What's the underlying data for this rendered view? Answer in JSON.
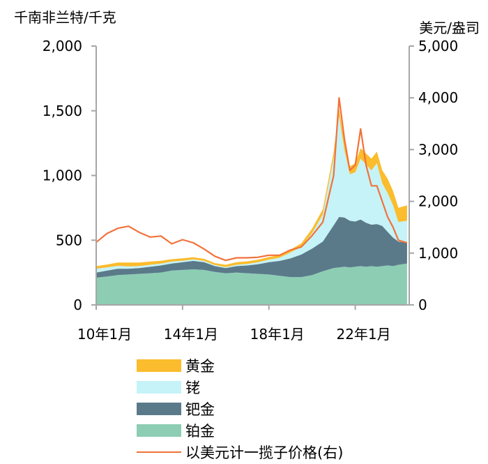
{
  "chart_data": {
    "type": "area",
    "y_left_unit": "千南非兰特/千克",
    "y_right_unit": "美元/盎司",
    "x_tick_labels": [
      "10年1月",
      "14年1月",
      "18年1月",
      "22年1月"
    ],
    "x_ticks": [
      2010,
      2014,
      2018,
      2022
    ],
    "x_range": [
      2010,
      2024.5
    ],
    "y_left_range": [
      0,
      2000
    ],
    "y_left_ticks": [
      0,
      500,
      1000,
      1500,
      2000
    ],
    "y_left_tick_labels": [
      "0",
      "500",
      "1,000",
      "1,500",
      "2,000"
    ],
    "y_right_range": [
      0,
      5000
    ],
    "y_right_ticks": [
      0,
      1000,
      2000,
      3000,
      4000,
      5000
    ],
    "y_right_tick_labels": [
      "0",
      "1,000",
      "2,000",
      "3,000",
      "4,000",
      "5,000"
    ],
    "x": [
      2010.0,
      2010.5,
      2011.0,
      2011.5,
      2012.0,
      2012.5,
      2013.0,
      2013.5,
      2014.0,
      2014.5,
      2015.0,
      2015.5,
      2016.0,
      2016.5,
      2017.0,
      2017.5,
      2018.0,
      2018.5,
      2019.0,
      2019.5,
      2020.0,
      2020.5,
      2021.0,
      2021.25,
      2021.5,
      2021.75,
      2022.0,
      2022.25,
      2022.5,
      2022.75,
      2023.0,
      2023.25,
      2023.5,
      2023.75,
      2024.0,
      2024.4
    ],
    "series": [
      {
        "name": "铂金",
        "color": "#8dcdb4",
        "values": [
          210,
          220,
          230,
          235,
          240,
          245,
          250,
          265,
          270,
          275,
          270,
          255,
          245,
          250,
          245,
          240,
          235,
          225,
          215,
          215,
          230,
          260,
          285,
          290,
          295,
          290,
          295,
          300,
          295,
          300,
          295,
          300,
          305,
          300,
          310,
          320
        ]
      },
      {
        "name": "钯金",
        "color": "#5a7a8a",
        "values": [
          40,
          45,
          50,
          45,
          45,
          50,
          55,
          55,
          60,
          65,
          60,
          45,
          40,
          50,
          60,
          75,
          95,
          115,
          145,
          175,
          205,
          230,
          330,
          390,
          380,
          360,
          350,
          360,
          340,
          320,
          330,
          310,
          260,
          220,
          180,
          160
        ]
      },
      {
        "name": "铑",
        "color": "#c5f3f7",
        "values": [
          30,
          25,
          22,
          18,
          15,
          15,
          14,
          15,
          12,
          12,
          10,
          8,
          7,
          10,
          12,
          15,
          20,
          25,
          45,
          60,
          120,
          210,
          520,
          780,
          520,
          360,
          380,
          470,
          450,
          420,
          470,
          330,
          300,
          250,
          150,
          170
        ]
      },
      {
        "name": "黄金",
        "color": "#fbbc2d",
        "values": [
          20,
          22,
          25,
          30,
          28,
          25,
          22,
          18,
          18,
          17,
          16,
          15,
          18,
          20,
          20,
          20,
          20,
          20,
          22,
          25,
          35,
          40,
          45,
          55,
          60,
          60,
          70,
          80,
          85,
          90,
          90,
          100,
          110,
          110,
          110,
          120
        ]
      },
      {
        "name": "以美元计一揽子价格(右)",
        "color": "#f2723a",
        "axis": "right",
        "values": [
          1210,
          1380,
          1480,
          1520,
          1400,
          1310,
          1330,
          1180,
          1260,
          1200,
          1080,
          940,
          860,
          910,
          910,
          920,
          960,
          960,
          1060,
          1120,
          1340,
          1600,
          2500,
          4000,
          3200,
          2600,
          2700,
          3400,
          2700,
          2300,
          2300,
          2000,
          1700,
          1500,
          1250,
          1200
        ]
      }
    ]
  },
  "legend": {
    "items": [
      {
        "label": "黄金",
        "kind": "area",
        "color": "#fbbc2d"
      },
      {
        "label": "铑",
        "kind": "area",
        "color": "#c5f3f7"
      },
      {
        "label": "钯金",
        "kind": "area",
        "color": "#5a7a8a"
      },
      {
        "label": "铂金",
        "kind": "area",
        "color": "#8dcdb4"
      },
      {
        "label": "以美元计一揽子价格(右)",
        "kind": "line",
        "color": "#f2723a"
      }
    ]
  }
}
